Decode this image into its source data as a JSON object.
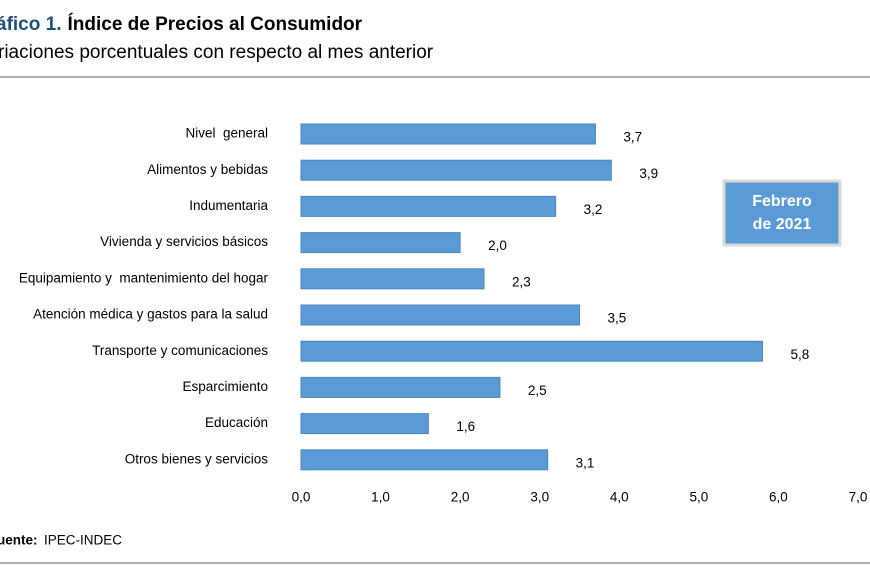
{
  "chart_data": {
    "type": "bar",
    "orientation": "horizontal",
    "title_prefix": "áfico 1.",
    "title": "Índice de Precios al Consumidor",
    "subtitle": "riaciones porcentuales con respecto al mes anterior",
    "categories": [
      "Nivel  general",
      "Alimentos y bebidas",
      "Indumentaria",
      "Vivienda y servicios básicos",
      "Equipamiento y  mantenimiento del hogar",
      "Atención médica y gastos para la salud",
      "Transporte y comunicaciones",
      "Esparcimiento",
      "Educación",
      "Otros bienes y servicios"
    ],
    "values": [
      3.7,
      3.9,
      3.2,
      2.0,
      2.3,
      3.5,
      5.8,
      2.5,
      1.6,
      3.1
    ],
    "value_labels": [
      "3,7",
      "3,9",
      "3,2",
      "2,0",
      "2,3",
      "3,5",
      "5,8",
      "2,5",
      "1,6",
      "3,1"
    ],
    "color": "#5b9bd5",
    "xlim": [
      0,
      7
    ],
    "xticks": [
      {
        "value": 0,
        "label": "0,0"
      },
      {
        "value": 1,
        "label": "1,0"
      },
      {
        "value": 2,
        "label": "2,0"
      },
      {
        "value": 3,
        "label": "3,0"
      },
      {
        "value": 4,
        "label": "4,0"
      },
      {
        "value": 5,
        "label": "5,0"
      },
      {
        "value": 6,
        "label": "6,0"
      },
      {
        "value": 7,
        "label": "7,0"
      }
    ],
    "annotation": [
      "Febrero",
      "de 2021"
    ],
    "source_label": "uente:",
    "source": "IPEC-INDEC"
  }
}
